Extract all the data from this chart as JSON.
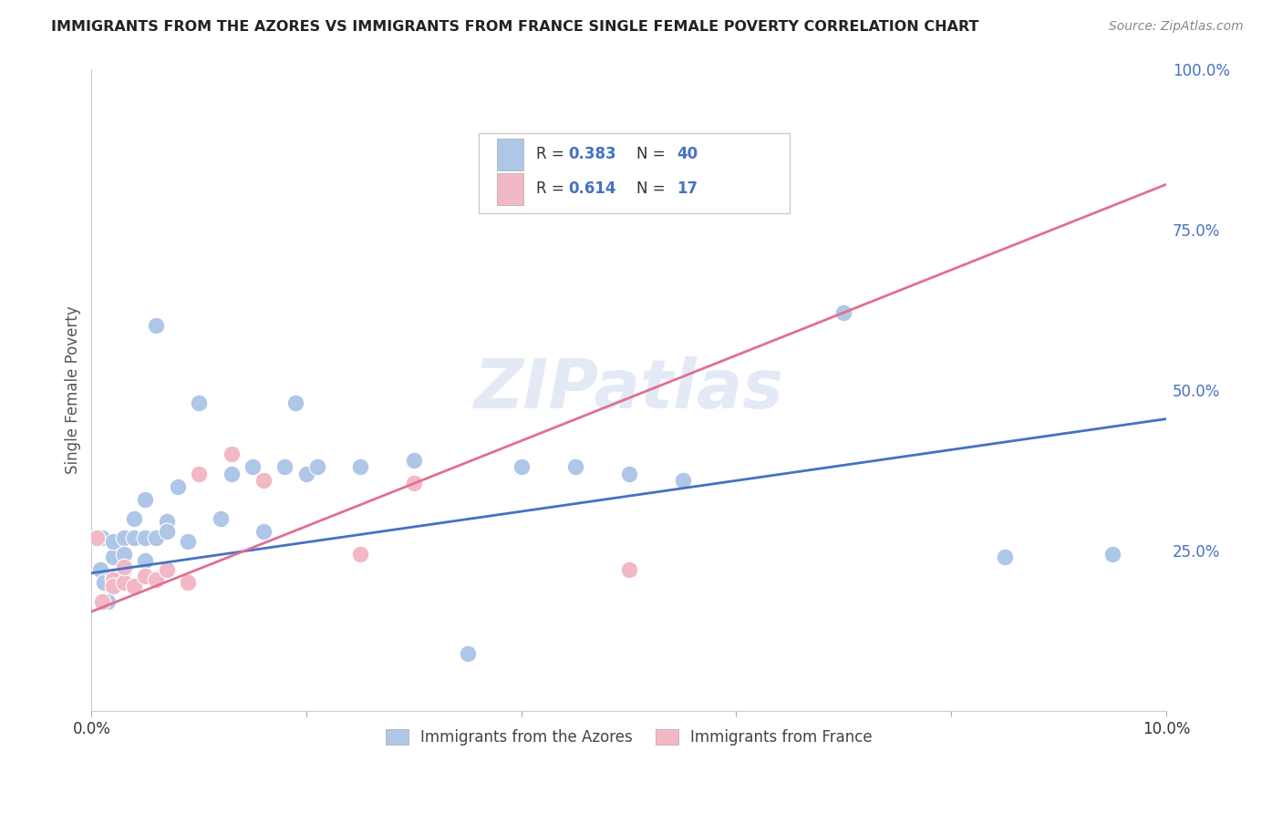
{
  "title": "IMMIGRANTS FROM THE AZORES VS IMMIGRANTS FROM FRANCE SINGLE FEMALE POVERTY CORRELATION CHART",
  "source": "Source: ZipAtlas.com",
  "ylabel": "Single Female Poverty",
  "xlim": [
    0,
    0.1
  ],
  "ylim": [
    0,
    1.0
  ],
  "blue_r": "0.383",
  "blue_n": "40",
  "pink_r": "0.614",
  "pink_n": "17",
  "blue_color": "#aec6e8",
  "pink_color": "#f2b8c6",
  "blue_line_color": "#4472C4",
  "pink_line_color": "#E07090",
  "legend_text_color": "#4472C4",
  "watermark": "ZIPatlas",
  "background_color": "#ffffff",
  "grid_color": "#cccccc",
  "blue_x": [
    0.0008,
    0.001,
    0.0012,
    0.0015,
    0.002,
    0.002,
    0.002,
    0.003,
    0.003,
    0.003,
    0.004,
    0.004,
    0.005,
    0.005,
    0.005,
    0.006,
    0.006,
    0.007,
    0.007,
    0.008,
    0.009,
    0.01,
    0.012,
    0.013,
    0.015,
    0.016,
    0.018,
    0.019,
    0.02,
    0.021,
    0.025,
    0.03,
    0.035,
    0.04,
    0.045,
    0.05,
    0.055,
    0.07,
    0.085,
    0.095
  ],
  "blue_y": [
    0.22,
    0.27,
    0.2,
    0.17,
    0.24,
    0.265,
    0.21,
    0.27,
    0.245,
    0.22,
    0.27,
    0.3,
    0.27,
    0.235,
    0.33,
    0.27,
    0.6,
    0.295,
    0.28,
    0.35,
    0.265,
    0.48,
    0.3,
    0.37,
    0.38,
    0.28,
    0.38,
    0.48,
    0.37,
    0.38,
    0.38,
    0.39,
    0.09,
    0.38,
    0.38,
    0.37,
    0.36,
    0.62,
    0.24,
    0.245
  ],
  "pink_x": [
    0.0005,
    0.001,
    0.002,
    0.002,
    0.003,
    0.003,
    0.004,
    0.005,
    0.006,
    0.007,
    0.009,
    0.01,
    0.013,
    0.016,
    0.025,
    0.03,
    0.05
  ],
  "pink_y": [
    0.27,
    0.17,
    0.205,
    0.195,
    0.2,
    0.225,
    0.195,
    0.21,
    0.205,
    0.22,
    0.2,
    0.37,
    0.4,
    0.36,
    0.245,
    0.355,
    0.22
  ]
}
